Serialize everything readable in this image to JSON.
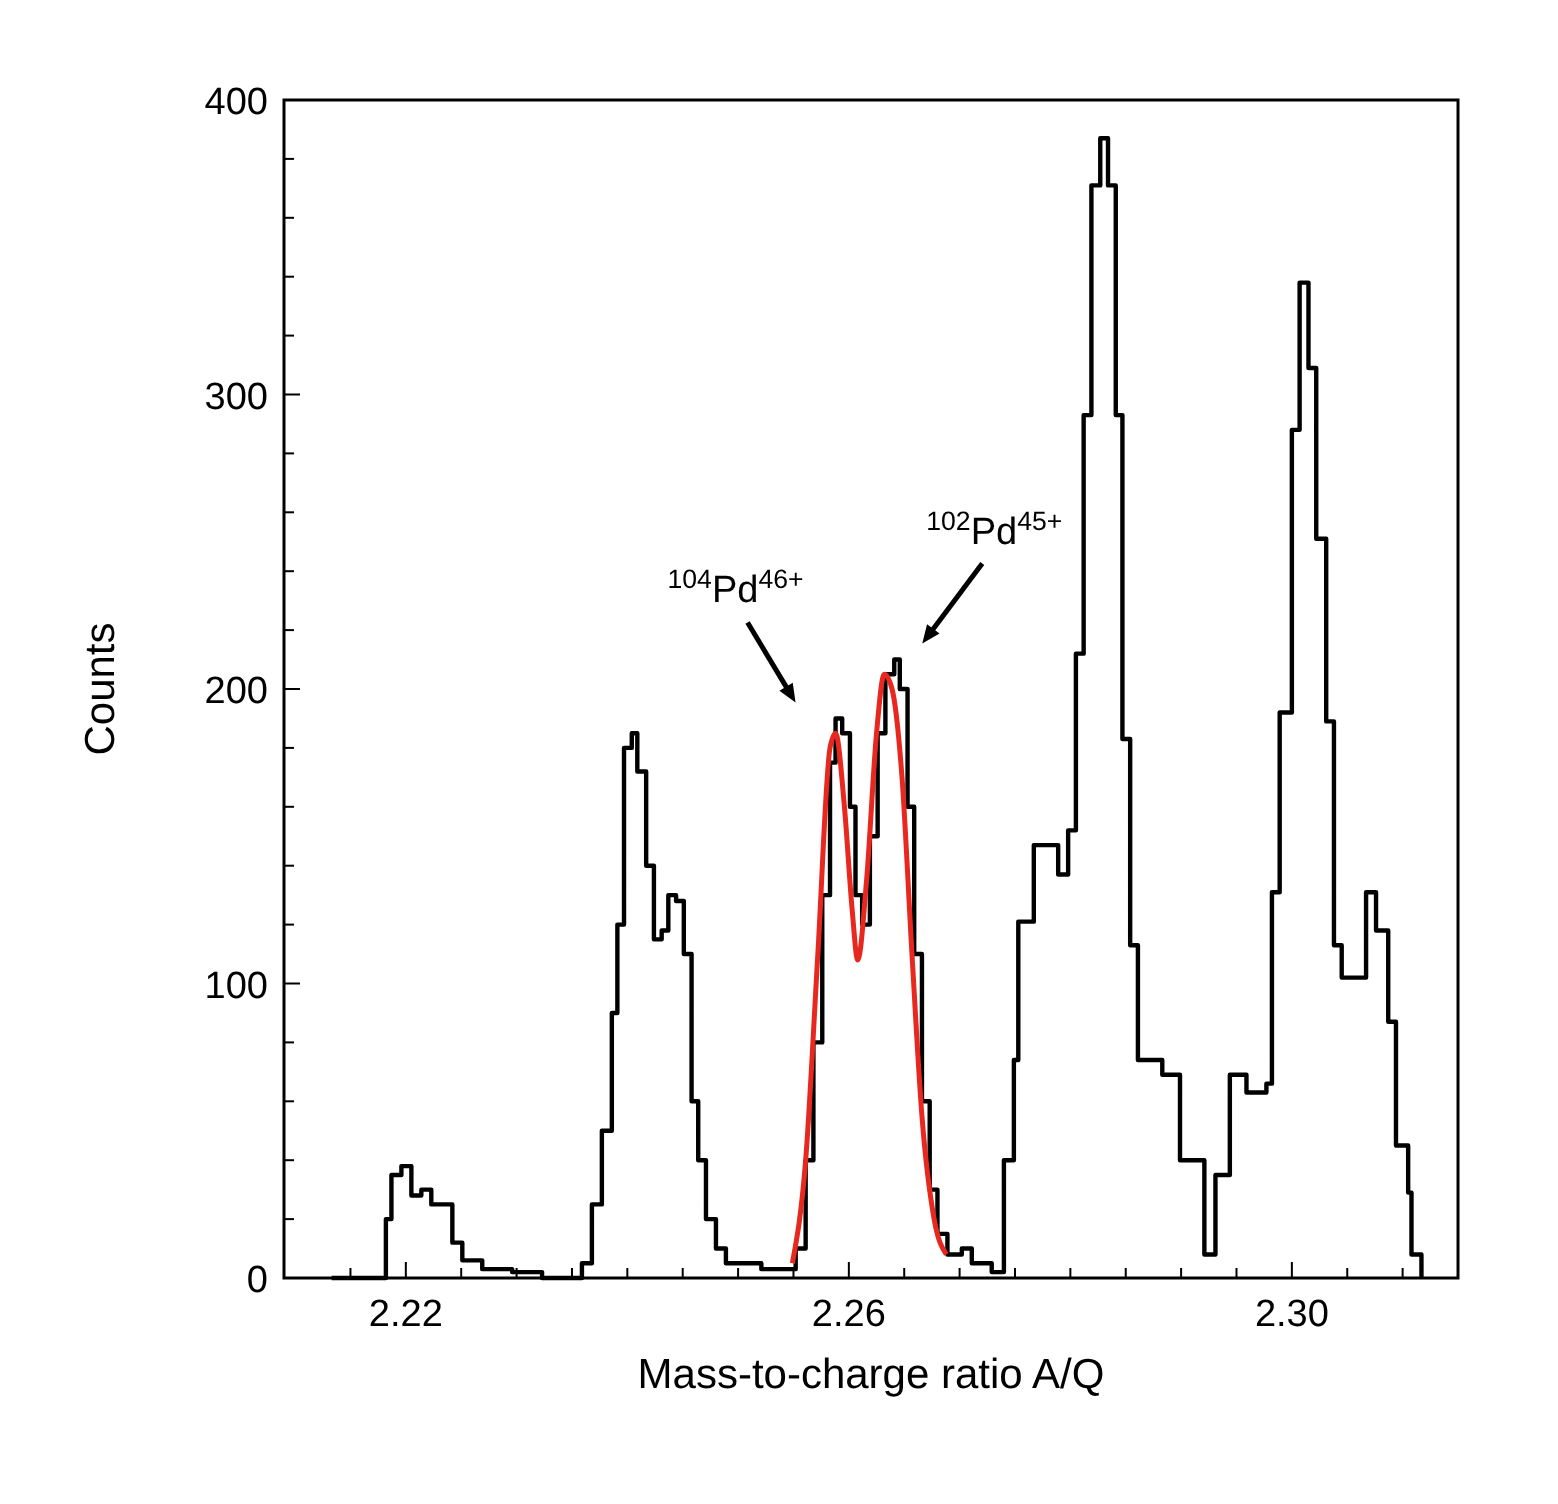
{
  "chart_data": {
    "type": "step",
    "xlabel": "Mass-to-charge ratio A/Q",
    "ylabel": "Counts",
    "xlim": [
      2.209,
      2.315
    ],
    "ylim": [
      0,
      400
    ],
    "xticks": [
      {
        "value": 2.215,
        "label": null
      },
      {
        "value": 2.22,
        "label": "2.22"
      },
      {
        "value": 2.225,
        "label": null
      },
      {
        "value": 2.23,
        "label": null
      },
      {
        "value": 2.235,
        "label": null
      },
      {
        "value": 2.24,
        "label": null
      },
      {
        "value": 2.245,
        "label": null
      },
      {
        "value": 2.25,
        "label": null
      },
      {
        "value": 2.255,
        "label": null
      },
      {
        "value": 2.26,
        "label": "2.26"
      },
      {
        "value": 2.265,
        "label": null
      },
      {
        "value": 2.27,
        "label": null
      },
      {
        "value": 2.275,
        "label": null
      },
      {
        "value": 2.28,
        "label": null
      },
      {
        "value": 2.285,
        "label": null
      },
      {
        "value": 2.29,
        "label": null
      },
      {
        "value": 2.295,
        "label": null
      },
      {
        "value": 2.3,
        "label": "2.30"
      },
      {
        "value": 2.305,
        "label": null
      },
      {
        "value": 2.31,
        "label": null
      }
    ],
    "yticks": [
      0,
      {
        "value": 20,
        "label": null
      },
      {
        "value": 40,
        "label": null
      },
      {
        "value": 60,
        "label": null
      },
      {
        "value": 80,
        "label": null
      },
      100,
      {
        "value": 120,
        "label": null
      },
      {
        "value": 140,
        "label": null
      },
      {
        "value": 160,
        "label": null
      },
      {
        "value": 180,
        "label": null
      },
      200,
      {
        "value": 220,
        "label": null
      },
      {
        "value": 240,
        "label": null
      },
      {
        "value": 260,
        "label": null
      },
      {
        "value": 280,
        "label": null
      },
      300,
      {
        "value": 320,
        "label": null
      },
      {
        "value": 340,
        "label": null
      },
      {
        "value": 360,
        "label": null
      },
      {
        "value": 380,
        "label": null
      },
      400
    ],
    "series": [
      {
        "color": "#000000",
        "x": [
          2.2133,
          2.2178,
          2.2182,
          2.2187,
          2.2196,
          2.2205,
          2.2214,
          2.2223,
          2.2233,
          2.2242,
          2.2251,
          2.2269,
          2.2296,
          2.2323,
          2.235,
          2.2359,
          2.2368,
          2.2377,
          2.2386,
          2.2391,
          2.2397,
          2.2404,
          2.2409,
          2.2417,
          2.2424,
          2.2431,
          2.2437,
          2.2444,
          2.2451,
          2.2458,
          2.2464,
          2.2471,
          2.248,
          2.2489,
          2.2503,
          2.2521,
          2.254,
          2.2552,
          2.2561,
          2.2568,
          2.2576,
          2.2583,
          2.2588,
          2.2594,
          2.2601,
          2.2606,
          2.2612,
          2.2619,
          2.2626,
          2.2633,
          2.2641,
          2.2646,
          2.2653,
          2.2659,
          2.2666,
          2.2673,
          2.268,
          2.2689,
          2.2702,
          2.2711,
          2.2729,
          2.274,
          2.2749,
          2.2753,
          2.2767,
          2.2789,
          2.2798,
          2.2805,
          2.2812,
          2.2819,
          2.2827,
          2.2834,
          2.2841,
          2.2847,
          2.2854,
          2.2861,
          2.2883,
          2.2899,
          2.2921,
          2.2931,
          2.2944,
          2.2959,
          2.2977,
          2.2982,
          2.2989,
          2.3,
          2.3007,
          2.3015,
          2.3022,
          2.3031,
          2.3038,
          2.3045,
          2.3067,
          2.3076,
          2.3087,
          2.3094,
          2.3105,
          2.3108,
          2.3117
        ],
        "values": [
          0,
          0,
          20,
          35,
          38,
          28,
          30,
          25,
          25,
          12,
          6,
          3,
          2,
          0,
          0,
          5,
          25,
          50,
          90,
          120,
          180,
          185,
          172,
          140,
          115,
          118,
          130,
          128,
          110,
          60,
          40,
          20,
          10,
          5,
          5,
          3,
          3,
          10,
          40,
          80,
          130,
          175,
          190,
          185,
          160,
          130,
          120,
          150,
          185,
          205,
          210,
          200,
          160,
          110,
          60,
          30,
          15,
          8,
          10,
          5,
          2,
          40,
          74,
          121,
          147,
          137,
          152,
          212,
          293,
          371,
          387,
          371,
          293,
          183,
          113,
          74,
          69,
          40,
          8,
          35,
          69,
          63,
          66,
          131,
          192,
          288,
          338,
          309,
          251,
          189,
          113,
          102,
          131,
          118,
          87,
          45,
          29,
          8,
          0
        ]
      },
      {
        "type": "line",
        "color": "#e8281e",
        "x": [
          2.2549,
          2.2561,
          2.2572,
          2.2583,
          2.2588,
          2.2596,
          2.2603,
          2.2608,
          2.2616,
          2.2625,
          2.2632,
          2.2639,
          2.2648,
          2.2657,
          2.2666,
          2.2677,
          2.2688
        ],
        "values": [
          5,
          40,
          110,
          180,
          185,
          160,
          125,
          108,
          135,
          185,
          205,
          200,
          170,
          110,
          55,
          20,
          8
        ]
      }
    ],
    "annotations": [
      {
        "text": "$^{104}$Pd$^{46+}$",
        "x": 2.2588,
        "y": 190
      },
      {
        "text": "$^{102}$Pd$^{45+}$",
        "x": 2.2641,
        "y": 210
      }
    ]
  }
}
